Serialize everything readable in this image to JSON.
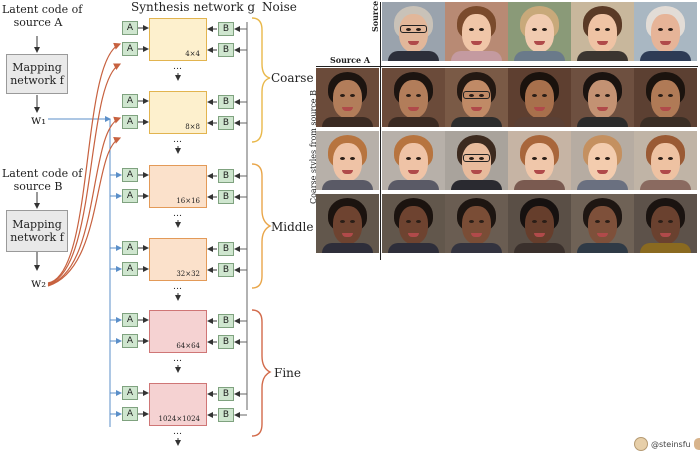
{
  "left": {
    "latent_a": [
      "Latent code of",
      "source A"
    ],
    "latent_b": [
      "Latent code of",
      "source B"
    ],
    "mapping": [
      "Mapping",
      "network f"
    ],
    "w1": "w₁",
    "w2": "w₂",
    "synthesis_title": "Synthesis network g",
    "noise_title": "Noise",
    "a_label": "A",
    "b_label": "B",
    "dots": "…",
    "resolutions": [
      "4×4",
      "8×8",
      "16×16",
      "32×32",
      "64×64",
      "1024×1024"
    ],
    "groups": [
      "Coarse",
      "Middle",
      "Fine"
    ]
  },
  "right": {
    "source_a_label": "Source A",
    "source_b_label": "Source B",
    "coarse_styles_label": "Coarse styles from source B"
  },
  "watermark": "@steinsfu",
  "colors": {
    "coarse_fill": "#fdf0cd",
    "coarse_border": "#e2b44f",
    "middle_fill": "#fbe1cb",
    "middle_border": "#e39a58",
    "fine_fill": "#f5d2d2",
    "fine_border": "#cf7676",
    "brace_coarse": "#e9b84a",
    "brace_middle": "#e9a64a",
    "brace_fine": "#d26a4a",
    "w2_arrow": "#c7613f",
    "w1_arrow": "#5b8fc9"
  }
}
